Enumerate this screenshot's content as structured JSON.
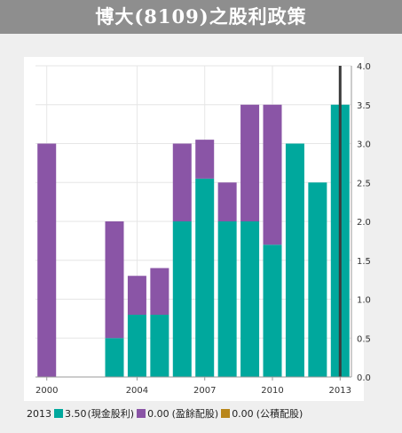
{
  "title": "博大(8109)之股利政策",
  "colors": {
    "cash": "#00a89d",
    "retained": "#8a55a6",
    "capital": "#b8861b",
    "cursor": "#3a3a3a",
    "grid": "#e6e6e6",
    "axis": "#999999"
  },
  "chart_data": {
    "type": "bar",
    "stacked": true,
    "categories": [
      "2000",
      "2001",
      "2002",
      "2003",
      "2004",
      "2005",
      "2006",
      "2007",
      "2008",
      "2009",
      "2010",
      "2011",
      "2012",
      "2013"
    ],
    "x_tick_labels": [
      "2000",
      "2004",
      "2007",
      "2010",
      "2013"
    ],
    "y_tick_labels": [
      "0.0",
      "0.5",
      "1.0",
      "1.5",
      "2.0",
      "2.5",
      "3.0",
      "3.5",
      "4.0"
    ],
    "ylim": [
      0,
      4.0
    ],
    "y_axis_position": "right",
    "grid": true,
    "series": [
      {
        "name": "現金股利",
        "color": "#00a89d",
        "values": [
          0,
          0,
          0,
          0.5,
          0.8,
          0.8,
          2.0,
          2.55,
          2.0,
          2.0,
          1.7,
          3.0,
          2.5,
          3.5
        ]
      },
      {
        "name": "盈餘配股",
        "color": "#8a55a6",
        "values": [
          3.0,
          0,
          0,
          1.5,
          0.5,
          0.6,
          1.0,
          0.5,
          0.5,
          1.5,
          1.8,
          0,
          0,
          0
        ]
      },
      {
        "name": "公積配股",
        "color": "#b8861b",
        "values": [
          0,
          0,
          0,
          0,
          0,
          0,
          0,
          0,
          0,
          0,
          0,
          0,
          0,
          0
        ]
      }
    ],
    "highlight_category": "2013"
  },
  "legend": {
    "year": "2013",
    "items": [
      {
        "value": "3.50",
        "label": "(現金股利)",
        "color": "#00a89d"
      },
      {
        "value": "0.00",
        "label": "(盈餘配股)",
        "color": "#8a55a6"
      },
      {
        "value": "0.00",
        "label": "(公積配股)",
        "color": "#b8861b"
      }
    ]
  }
}
